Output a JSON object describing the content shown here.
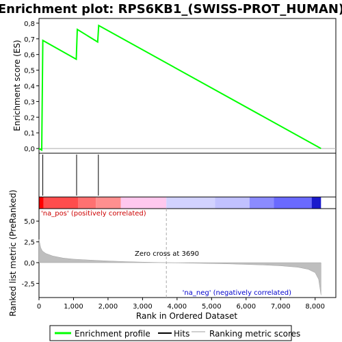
{
  "chart_data": {
    "type": "line",
    "title": "Enrichment plot: RPS6KB1_(SWISS-PROT_HUMAN)",
    "xlabel": "Rank in Ordered Dataset",
    "ylabel_top": "Enrichment score (ES)",
    "ylabel_bottom": "Ranked list metric (PreRanked)",
    "xlim": [
      0,
      8600
    ],
    "x_ticks": [
      0,
      1000,
      2000,
      3000,
      4000,
      5000,
      6000,
      7000,
      8000
    ],
    "x_tick_labels": [
      "0",
      "1,000",
      "2,000",
      "3,000",
      "4,000",
      "5,000",
      "6,000",
      "7,000",
      "8,000"
    ],
    "es_ylim": [
      -0.03,
      0.83
    ],
    "es_ticks": [
      0.0,
      0.1,
      0.2,
      0.3,
      0.4,
      0.5,
      0.6,
      0.7,
      0.8
    ],
    "es_tick_labels": [
      "0,0",
      "0,1",
      "0,2",
      "0,3",
      "0,4",
      "0,5",
      "0,6",
      "0,7",
      "0,8"
    ],
    "metric_ylim": [
      -4.2,
      6.5
    ],
    "metric_ticks": [
      5.0,
      2.5,
      0.0,
      -2.5
    ],
    "metric_tick_labels": [
      "5,0",
      "2,5",
      "0,0",
      "-2,5"
    ],
    "series": [
      {
        "name": "Enrichment profile",
        "color": "#00ff00",
        "x": [
          0,
          80,
          110,
          1080,
          1110,
          1700,
          1730,
          8170
        ],
        "y": [
          0.0,
          -0.01,
          0.69,
          0.57,
          0.76,
          0.68,
          0.785,
          0.0
        ]
      }
    ],
    "hits": [
      110,
      1090,
      1720
    ],
    "metric_curve": {
      "x": [
        0,
        50,
        100,
        200,
        400,
        700,
        1000,
        1500,
        2000,
        2500,
        3000,
        3690,
        4500,
        5500,
        6500,
        7000,
        7500,
        7800,
        8000,
        8100,
        8170
      ],
      "y": [
        2.8,
        1.8,
        1.4,
        1.1,
        0.8,
        0.55,
        0.42,
        0.3,
        0.2,
        0.12,
        0.06,
        0.0,
        -0.07,
        -0.15,
        -0.28,
        -0.38,
        -0.55,
        -0.8,
        -1.2,
        -2.0,
        -3.9
      ]
    },
    "zero_cross": 3690,
    "zero_cross_label": "Zero cross at 3690",
    "pos_label": "'na_pos' (positively correlated)",
    "neg_label": "'na_neg' (negatively correlated)",
    "colors": {
      "pos_text": "#cc0000",
      "neg_text": "#0000cc",
      "metric_fill": "#bebebe",
      "hit_line": "#000000"
    },
    "heat_bands": [
      {
        "from": 0,
        "to": 130,
        "color": "#ff0000"
      },
      {
        "from": 130,
        "to": 1130,
        "color": "#ff4d4d"
      },
      {
        "from": 1130,
        "to": 1650,
        "color": "#ff7171"
      },
      {
        "from": 1650,
        "to": 2370,
        "color": "#ff8f8f"
      },
      {
        "from": 2370,
        "to": 3690,
        "color": "#ffc8ee"
      },
      {
        "from": 3690,
        "to": 5100,
        "color": "#d2d2ff"
      },
      {
        "from": 5100,
        "to": 6100,
        "color": "#c1c1ff"
      },
      {
        "from": 6100,
        "to": 6800,
        "color": "#8b8bff"
      },
      {
        "from": 6800,
        "to": 7900,
        "color": "#6a6aff"
      },
      {
        "from": 7900,
        "to": 8170,
        "color": "#1a1acc"
      }
    ],
    "legend": {
      "items": [
        {
          "label": "Enrichment profile",
          "color": "#00ff00"
        },
        {
          "label": "Hits",
          "color": "#000000"
        },
        {
          "label": "Ranking metric scores",
          "color": "#bebebe"
        }
      ]
    }
  }
}
